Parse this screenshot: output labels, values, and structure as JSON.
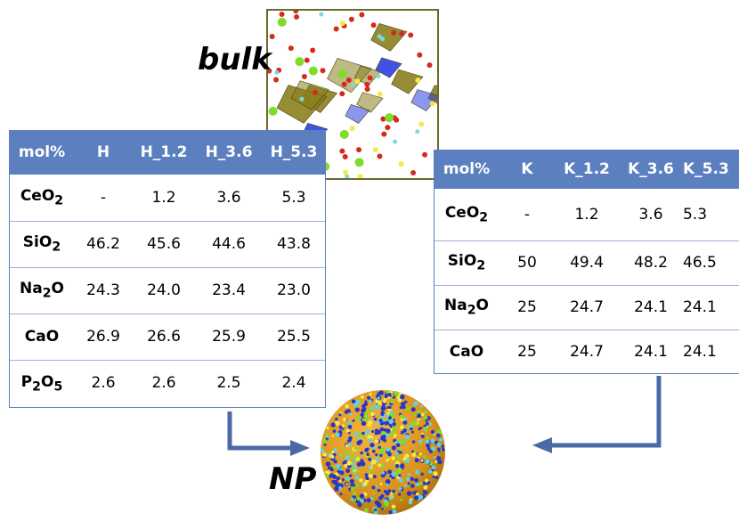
{
  "labels": {
    "bulk": "bulk",
    "np": "NP"
  },
  "colors": {
    "header": "#5b7fbf",
    "arrow": "#4a6aa6",
    "row_line": "#9bb0d6",
    "tetra_olive": "#8a7f1e",
    "tetra_blue": "#2b3fe0",
    "oxygen": "#d42a1e",
    "calcium": "#7fdc2a",
    "sodium": "#f5e84a",
    "cerium": "#7fd8e0"
  },
  "table_h": {
    "headers": [
      "mol%",
      "H",
      "H_1.2",
      "H_3.6",
      "H_5.3"
    ],
    "rows": [
      {
        "oxide": "CeO",
        "sub": "2",
        "sub2": "",
        "values": [
          "-",
          "1.2",
          "3.6",
          "5.3"
        ]
      },
      {
        "oxide": "SiO",
        "sub": "2",
        "sub2": "",
        "values": [
          "46.2",
          "45.6",
          "44.6",
          "43.8"
        ]
      },
      {
        "oxide": "Na",
        "sub": "2",
        "after": "O",
        "sub2": "",
        "values": [
          "24.3",
          "24.0",
          "23.4",
          "23.0"
        ]
      },
      {
        "oxide": "CaO",
        "sub": "",
        "sub2": "",
        "values": [
          "26.9",
          "26.6",
          "25.9",
          "25.5"
        ]
      },
      {
        "oxide": "P",
        "sub": "2",
        "after": "O",
        "sub2": "5",
        "values": [
          "2.6",
          "2.6",
          "2.5",
          "2.4"
        ]
      }
    ]
  },
  "table_k": {
    "headers": [
      "mol%",
      "K",
      "K_1.2",
      "K_3.6",
      "K_5.3"
    ],
    "rows": [
      {
        "oxide": "CeO",
        "sub": "2",
        "sub2": "",
        "values": [
          "-",
          "1.2",
          "3.6",
          "5.3"
        ]
      },
      {
        "oxide": "SiO",
        "sub": "2",
        "sub2": "",
        "values": [
          "50",
          "49.4",
          "48.2",
          "46.5"
        ]
      },
      {
        "oxide": "Na",
        "sub": "2",
        "after": "O",
        "sub2": "",
        "values": [
          "25",
          "24.7",
          "24.1",
          "24.1"
        ]
      },
      {
        "oxide": "CaO",
        "sub": "",
        "sub2": "",
        "values": [
          "25",
          "24.7",
          "24.1",
          "24.1"
        ]
      }
    ]
  }
}
